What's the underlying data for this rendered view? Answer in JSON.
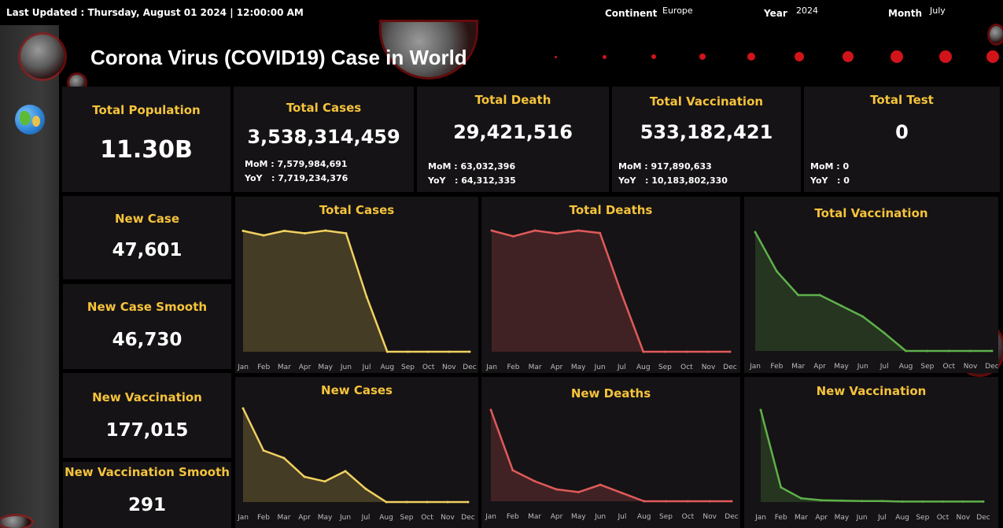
{
  "header": {
    "last_updated": "Last Updated : Thursday, August 01 2024 | 12:00:00 AM",
    "filters": {
      "continent_label": "Continent",
      "continent_value": "Europe",
      "year_label": "Year",
      "year_value": "2024",
      "month_label": "Month",
      "month_value": "July"
    },
    "title": "Corona Virus (COVID19) Case in World"
  },
  "kpis": {
    "total_population": {
      "label": "Total Population",
      "value": "11.30B"
    },
    "total_cases": {
      "label": "Total Cases",
      "value": "3,538,314,459",
      "mom": "MoM : 7,579,984,691",
      "yoy": "YoY   : 7,719,234,376"
    },
    "total_death": {
      "label": "Total Death",
      "value": "29,421,516",
      "mom": "MoM : 63,032,396",
      "yoy": "YoY   : 64,312,335"
    },
    "total_vaccination": {
      "label": "Total Vaccination",
      "value": "533,182,421",
      "mom": "MoM : 917,890,633",
      "yoy": "YoY   : 10,183,802,330"
    },
    "total_test": {
      "label": "Total Test",
      "value": "0",
      "mom": "MoM : 0",
      "yoy": "YoY   : 0"
    }
  },
  "side_kpis": {
    "new_case": {
      "label": "New Case",
      "value": "47,601"
    },
    "new_case_smooth": {
      "label": "New Case Smooth",
      "value": "46,730"
    },
    "new_vaccination": {
      "label": "New Vaccination",
      "value": "177,015"
    },
    "new_vaccination_smooth": {
      "label": "New Vaccination Smooth",
      "value": "291"
    }
  },
  "colors": {
    "accent": "#f5c33b",
    "cases": "#f0d060",
    "deaths": "#e05a5a",
    "vacc": "#5fb04a"
  },
  "chart_data": [
    {
      "id": "total_cases",
      "type": "area",
      "title": "Total Cases",
      "categories": [
        "Jan",
        "Feb",
        "Mar",
        "Apr",
        "May",
        "Jun",
        "Jul",
        "Aug",
        "Sep",
        "Oct",
        "Nov",
        "Dec"
      ],
      "values": [
        3.52,
        3.39,
        3.52,
        3.45,
        3.53,
        3.45,
        1.6,
        0,
        0,
        0,
        0,
        0
      ],
      "color": "cases"
    },
    {
      "id": "total_deaths",
      "type": "area",
      "title": "Total Deaths",
      "categories": [
        "Jan",
        "Feb",
        "Mar",
        "Apr",
        "May",
        "Jun",
        "Jul",
        "Aug",
        "Sep",
        "Oct",
        "Nov",
        "Dec"
      ],
      "values": [
        29.4,
        28.0,
        29.4,
        28.7,
        29.4,
        28.8,
        14.0,
        0,
        0,
        0,
        0,
        0
      ],
      "color": "deaths"
    },
    {
      "id": "total_vaccination",
      "type": "area",
      "title": "Total Vaccination",
      "categories": [
        "Jan",
        "Feb",
        "Mar",
        "Apr",
        "May",
        "Jun",
        "Jul",
        "Aug",
        "Sep",
        "Oct",
        "Nov",
        "Dec"
      ],
      "values": [
        100,
        67,
        47,
        47,
        38,
        29,
        15,
        0,
        0,
        0,
        0,
        0
      ],
      "color": "vacc"
    },
    {
      "id": "new_cases",
      "type": "area",
      "title": "New Cases",
      "categories": [
        "Jan",
        "Feb",
        "Mar",
        "Apr",
        "May",
        "Jun",
        "Jul",
        "Aug",
        "Sep",
        "Oct",
        "Nov",
        "Dec"
      ],
      "values": [
        100,
        55,
        47,
        27,
        22,
        33,
        14,
        0,
        0,
        0,
        0,
        0
      ],
      "color": "cases"
    },
    {
      "id": "new_deaths",
      "type": "area",
      "title": "New Deaths",
      "categories": [
        "Jan",
        "Feb",
        "Mar",
        "Apr",
        "May",
        "Jun",
        "Jul",
        "Aug",
        "Sep",
        "Oct",
        "Nov",
        "Dec"
      ],
      "values": [
        100,
        34,
        22,
        13,
        10,
        18,
        9,
        0,
        0,
        0,
        0,
        0
      ],
      "color": "deaths"
    },
    {
      "id": "new_vaccination",
      "type": "area",
      "title": "New Vaccination",
      "categories": [
        "Jan",
        "Feb",
        "Mar",
        "Apr",
        "May",
        "Jun",
        "Jul",
        "Aug",
        "Sep",
        "Oct",
        "Nov",
        "Dec"
      ],
      "values": [
        100,
        16,
        4,
        2,
        1.5,
        1,
        1,
        0.5,
        0.5,
        0.5,
        0.5,
        0.5
      ],
      "color": "vacc"
    }
  ]
}
